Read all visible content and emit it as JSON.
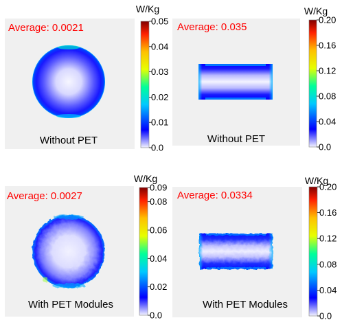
{
  "colors": {
    "panel_bg": "#f0f0f0",
    "average_text": "#ff0000",
    "colormap": [
      "#f4f4ff",
      "#0000ff",
      "#00c8ff",
      "#00ff9a",
      "#e6ff00",
      "#ffc000",
      "#ff2000",
      "#800000"
    ]
  },
  "chart_data": [
    {
      "type": "heatmap",
      "average_label": "Average: 0.0021",
      "caption": "Without PET",
      "shape": "circle",
      "colorbar": {
        "unit": "W/Kg",
        "range": [
          0.0,
          0.05
        ],
        "ticks": [
          "0.0",
          "0.01",
          "0.02",
          "0.03",
          "0.04",
          "0.05"
        ]
      }
    },
    {
      "type": "heatmap",
      "average_label": "Average: 0.035",
      "caption": "Without PET",
      "shape": "rectangle",
      "colorbar": {
        "unit": "W/Kg",
        "range": [
          0.0,
          0.2
        ],
        "ticks": [
          "0.0",
          "0.04",
          "0.08",
          "0.12",
          "0.16",
          "0.20"
        ]
      }
    },
    {
      "type": "heatmap",
      "average_label": "Average: 0.0027",
      "caption": "With PET Modules",
      "shape": "circle",
      "colorbar": {
        "unit": "W/Kg",
        "range": [
          0.0,
          0.09
        ],
        "ticks": [
          "0.0",
          "0.02",
          "0.04",
          "0.06",
          "0.08",
          "0.09"
        ]
      }
    },
    {
      "type": "heatmap",
      "average_label": "Average: 0.0334",
      "caption": "With PET Modules",
      "shape": "rectangle",
      "colorbar": {
        "unit": "W/Kg",
        "range": [
          0.0,
          0.2
        ],
        "ticks": [
          "0.0",
          "0.04",
          "0.08",
          "0.12",
          "0.16",
          "0.20"
        ]
      }
    }
  ]
}
